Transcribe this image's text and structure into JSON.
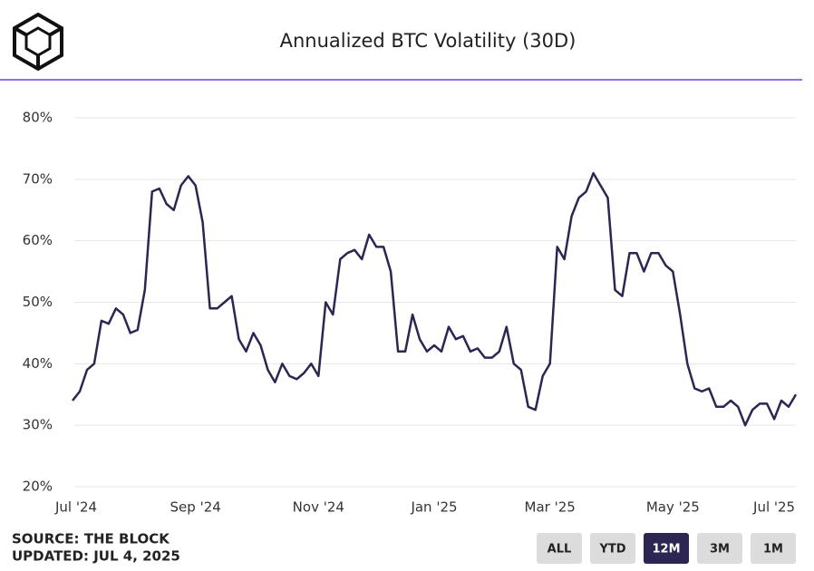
{
  "chart_data": {
    "type": "line",
    "title": "Annualized BTC Volatility (30D)",
    "categories": [
      "Jul '24",
      null,
      null,
      null,
      null,
      null,
      null,
      null,
      null,
      null,
      null,
      null,
      null,
      null,
      null,
      null,
      null,
      "Sep '24",
      null,
      null,
      null,
      null,
      null,
      null,
      null,
      null,
      null,
      null,
      null,
      null,
      null,
      null,
      null,
      null,
      "Nov '24",
      null,
      null,
      null,
      null,
      null,
      null,
      null,
      null,
      null,
      null,
      null,
      null,
      null,
      null,
      null,
      "Jan '25",
      null,
      null,
      null,
      null,
      null,
      null,
      null,
      null,
      null,
      null,
      null,
      null,
      null,
      null,
      null,
      "Mar '25",
      null,
      null,
      null,
      null,
      null,
      null,
      null,
      null,
      null,
      null,
      null,
      null,
      null,
      null,
      null,
      null,
      "May '25",
      null,
      null,
      null,
      null,
      null,
      null,
      null,
      null,
      null,
      null,
      null,
      null,
      null,
      "Jul '25",
      null,
      null,
      null
    ],
    "series": [
      {
        "name": "Annualized BTC Volatility (30D)",
        "color": "#2b2652",
        "values": [
          34,
          35.5,
          39,
          40,
          47,
          46.5,
          49,
          48,
          45,
          45.5,
          52,
          68,
          68.5,
          66,
          65,
          69,
          70.5,
          69,
          63,
          49,
          49,
          50,
          51,
          44,
          42,
          45,
          43,
          39,
          37,
          40,
          38,
          37.5,
          38.5,
          40,
          38,
          50,
          48,
          57,
          58,
          58.5,
          57,
          61,
          59,
          59,
          55,
          42,
          42,
          48,
          44,
          42,
          43,
          42,
          46,
          44,
          44.5,
          42,
          42.5,
          41,
          41,
          42,
          46,
          40,
          39,
          33,
          32.5,
          38,
          40,
          59,
          57,
          64,
          67,
          68,
          71,
          69,
          67,
          52,
          51,
          58,
          58,
          55,
          58,
          58,
          56,
          55,
          48,
          40,
          36,
          35.5,
          36,
          33,
          33,
          34,
          33,
          30,
          32.5,
          33.5,
          33.5,
          31,
          34,
          33,
          35
        ]
      }
    ],
    "ylim": [
      20,
      80
    ],
    "yticks": [
      {
        "value": 20,
        "label": "20%"
      },
      {
        "value": 30,
        "label": "30%"
      },
      {
        "value": 40,
        "label": "40%"
      },
      {
        "value": 50,
        "label": "50%"
      },
      {
        "value": 60,
        "label": "60%"
      },
      {
        "value": 70,
        "label": "70%"
      },
      {
        "value": 80,
        "label": "80%"
      }
    ],
    "grid": true
  },
  "footer": {
    "source": "SOURCE: THE BLOCK",
    "updated": "UPDATED: JUL 4, 2025"
  },
  "buttons": [
    {
      "label": "ALL"
    },
    {
      "label": "YTD"
    },
    {
      "label": "12M",
      "active": true
    },
    {
      "label": "3M"
    },
    {
      "label": "1M"
    }
  ]
}
